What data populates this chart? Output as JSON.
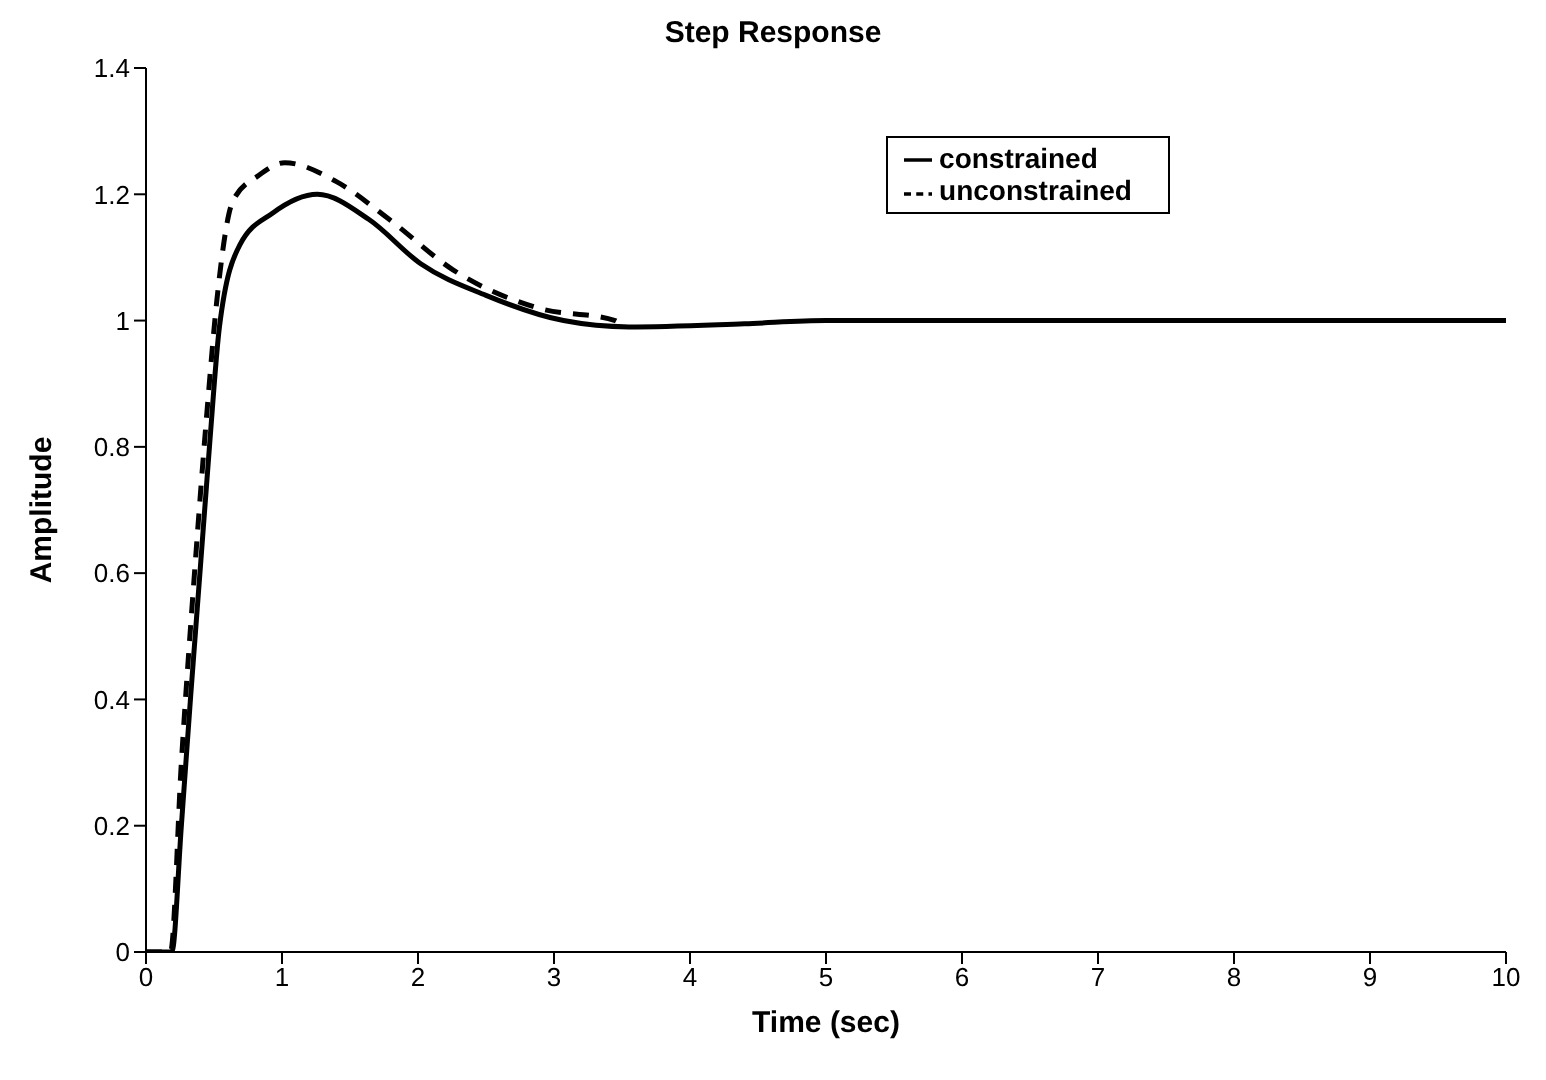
{
  "chart_data": {
    "type": "line",
    "title": "Step Response",
    "xlabel": "Time (sec)",
    "ylabel": "Amplitude",
    "xlim": [
      0,
      10
    ],
    "xticks": [
      0,
      1,
      2,
      3,
      4,
      5,
      6,
      7,
      8,
      9,
      10
    ],
    "ylim": [
      0,
      1.4
    ],
    "yticks": [
      0,
      0.2,
      0.4,
      0.6,
      0.8,
      1,
      1.2,
      1.4
    ],
    "grid": false,
    "legend": "top right",
    "marker": "none",
    "series": [
      {
        "name": "constrained",
        "color": "#000000",
        "line_style": "solid",
        "x": [
          0,
          0.19,
          0.26,
          0.33,
          0.4,
          0.47,
          0.54,
          0.69,
          0.93,
          1.26,
          1.64,
          2.02,
          2.5,
          3.07,
          3.55,
          4.4,
          5,
          6,
          7,
          8,
          9,
          10
        ],
        "values": [
          0,
          0,
          0.2,
          0.41,
          0.61,
          0.81,
          0.99,
          1.12,
          1.17,
          1.2,
          1.16,
          1.09,
          1.04,
          1,
          0.99,
          0.995,
          1,
          1,
          1,
          1,
          1,
          1
        ]
      },
      {
        "name": "unconstrained",
        "color": "#000000",
        "line_style": "dashed",
        "x": [
          0,
          0.18,
          0.26,
          0.36,
          0.45,
          0.52,
          0.64,
          0.83,
          1.02,
          1.4,
          1.79,
          2.26,
          2.88,
          3.45,
          3.5
        ],
        "values": [
          0,
          0,
          0.3,
          0.61,
          0.86,
          1.03,
          1.19,
          1.23,
          1.25,
          1.22,
          1.16,
          1.08,
          1.02,
          1,
          0.99
        ]
      }
    ]
  }
}
